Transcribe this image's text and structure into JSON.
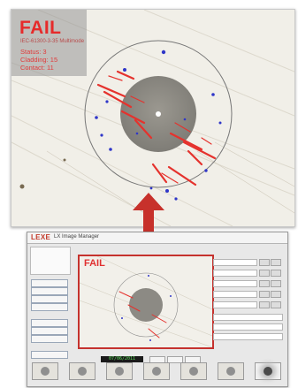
{
  "zoom_view": {
    "result": "FAIL",
    "subtitle": "IEC-61300-3-35 Multimode",
    "zones": [
      "Status: 3",
      "Cladding: 15",
      "Contact: 11"
    ]
  },
  "app": {
    "logo": "LEXE",
    "title": "LX Image Manager"
  },
  "preview": {
    "result": "FAIL"
  },
  "status_readout": "07/06/2011 15:40",
  "colors": {
    "fail_red": "#e03030",
    "defect_red": "#e5322d",
    "defect_blue": "#2f36c8",
    "core_gray": "#8c8a84",
    "arrow": "#c7312b"
  },
  "icons": [
    "fiber-endface-icon",
    "up-arrow-icon"
  ]
}
